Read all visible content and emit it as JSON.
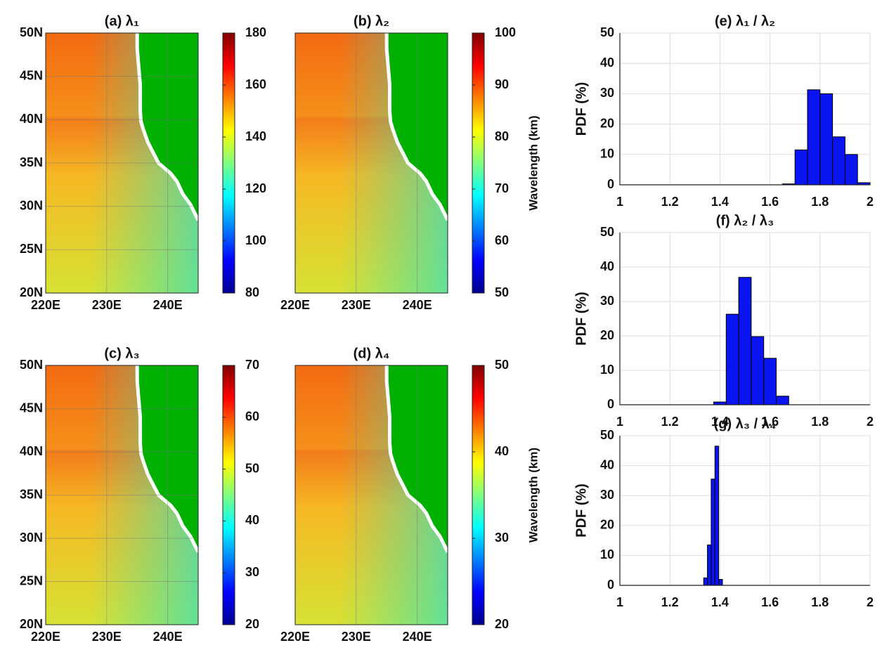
{
  "chart_data": [
    {
      "type": "map",
      "title": "(a) λ₁",
      "xlim": [
        220,
        245
      ],
      "xticks": [
        {
          "value": 220,
          "label": "220E"
        },
        {
          "value": 230,
          "label": "230E"
        },
        {
          "value": 240,
          "label": "240E"
        }
      ],
      "ylim": [
        20,
        50
      ],
      "yticks": [
        {
          "value": 20,
          "label": "20N"
        },
        {
          "value": 25,
          "label": "25N"
        },
        {
          "value": 30,
          "label": "30N"
        },
        {
          "value": 35,
          "label": "35N"
        },
        {
          "value": 40,
          "label": "40N"
        },
        {
          "value": 45,
          "label": "45N"
        },
        {
          "value": 50,
          "label": "50N"
        }
      ],
      "clim": [
        80,
        180
      ],
      "cticks": [
        80,
        100,
        120,
        140,
        160,
        180
      ],
      "grid": true
    },
    {
      "type": "map",
      "title": "(b) λ₂",
      "xlim": [
        220,
        245
      ],
      "xticks": [
        {
          "value": 220,
          "label": "220E"
        },
        {
          "value": 230,
          "label": "230E"
        },
        {
          "value": 240,
          "label": "240E"
        }
      ],
      "ylim": [
        20,
        50
      ],
      "yticks": [],
      "clim": [
        50,
        100
      ],
      "cticks": [
        50,
        60,
        70,
        80,
        90,
        100
      ],
      "clabel": "Wavelength (km)",
      "grid": true
    },
    {
      "type": "map",
      "title": "(c) λ₃",
      "xlim": [
        220,
        245
      ],
      "xticks": [
        {
          "value": 220,
          "label": "220E"
        },
        {
          "value": 230,
          "label": "230E"
        },
        {
          "value": 240,
          "label": "240E"
        }
      ],
      "ylim": [
        20,
        50
      ],
      "yticks": [
        {
          "value": 20,
          "label": "20N"
        },
        {
          "value": 25,
          "label": "25N"
        },
        {
          "value": 30,
          "label": "30N"
        },
        {
          "value": 35,
          "label": "35N"
        },
        {
          "value": 40,
          "label": "40N"
        },
        {
          "value": 45,
          "label": "45N"
        },
        {
          "value": 50,
          "label": "50N"
        }
      ],
      "clim": [
        20,
        70
      ],
      "cticks": [
        20,
        30,
        40,
        50,
        60,
        70
      ],
      "grid": true
    },
    {
      "type": "map",
      "title": "(d) λ₄",
      "xlim": [
        220,
        245
      ],
      "xticks": [
        {
          "value": 220,
          "label": "220E"
        },
        {
          "value": 230,
          "label": "230E"
        },
        {
          "value": 240,
          "label": "240E"
        }
      ],
      "ylim": [
        20,
        50
      ],
      "yticks": [],
      "clim": [
        20,
        50
      ],
      "cticks": [
        20,
        30,
        40,
        50
      ],
      "clabel": "Wavelength (km)",
      "grid": true
    },
    {
      "type": "histogram",
      "title": "(e) λ₁ / λ₂",
      "ylabel": "PDF (%)",
      "bins": [
        1.65,
        1.7,
        1.75,
        1.8,
        1.85,
        1.9,
        1.95,
        2.0
      ],
      "values": [
        0.3,
        11.5,
        31.3,
        30,
        15.8,
        10,
        0.7
      ],
      "xlim": [
        1,
        2
      ],
      "xticks": [
        1,
        1.2,
        1.4,
        1.6,
        1.8,
        2
      ],
      "ylim": [
        0,
        50
      ],
      "yticks": [
        0,
        10,
        20,
        30,
        40,
        50
      ],
      "color": "#0a14f0",
      "grid": true
    },
    {
      "type": "histogram",
      "title": "(f) λ₂ / λ₃",
      "ylabel": "PDF (%)",
      "bins": [
        1.375,
        1.425,
        1.475,
        1.525,
        1.575,
        1.625,
        1.675
      ],
      "values": [
        0.8,
        26.3,
        37,
        19.8,
        13.5,
        2.5
      ],
      "xlim": [
        1,
        2
      ],
      "xticks": [
        1,
        1.2,
        1.4,
        1.6,
        1.8,
        2
      ],
      "ylim": [
        0,
        50
      ],
      "yticks": [
        0,
        10,
        20,
        30,
        40,
        50
      ],
      "color": "#0a14f0",
      "grid": true
    },
    {
      "type": "histogram",
      "title": "(g) λ₃ / λ₄",
      "ylabel": "PDF (%)",
      "bins": [
        1.335,
        1.35,
        1.365,
        1.38,
        1.395,
        1.41
      ],
      "values": [
        2.5,
        13.5,
        35.5,
        46.5,
        2
      ],
      "xlim": [
        1,
        2
      ],
      "xticks": [
        1,
        1.2,
        1.4,
        1.6,
        1.8,
        2
      ],
      "ylim": [
        0,
        50
      ],
      "yticks": [
        0,
        10,
        20,
        30,
        40,
        50
      ],
      "color": "#0a14f0",
      "grid": true
    }
  ]
}
